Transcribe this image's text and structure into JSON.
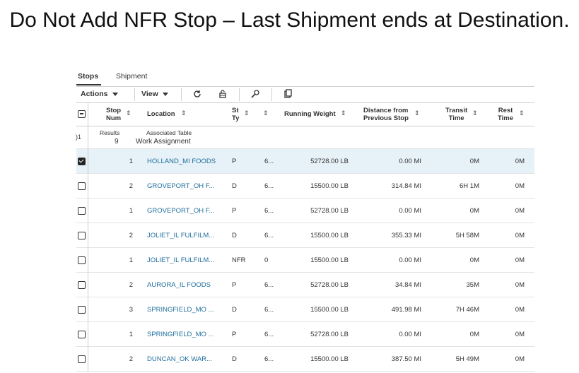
{
  "caption": "Do Not Add NFR Stop – Last Shipment ends at Destination.",
  "tabs": [
    {
      "label": "Stops"
    },
    {
      "label": "Shipment"
    }
  ],
  "toolbar": {
    "actions_label": "Actions",
    "view_label": "View",
    "icons": [
      "refresh-icon",
      "unlock-icon",
      "wrench-icon",
      "export-icon"
    ]
  },
  "columns": {
    "stop_num": [
      "Stop",
      "Num"
    ],
    "location": "Location",
    "stop_type": [
      "St",
      "Ty"
    ],
    "running_weight": "Running Weight",
    "distance": [
      "Distance from",
      "Previous Stop"
    ],
    "transit": [
      "Transit",
      "Time"
    ],
    "rest": [
      "Rest",
      "Time"
    ]
  },
  "results_row": {
    "left_fragment": ")1",
    "results_label": "Results",
    "results_count": "9",
    "assoc_label": "Associated Table",
    "assoc_value": "Work Assignment"
  },
  "rows": [
    {
      "checked": true,
      "stop": "1",
      "location": "HOLLAND_MI FOODS",
      "type": "P",
      "extra": "6...",
      "weight": "52728.00 LB",
      "distance": "0.00 MI",
      "transit": "0M",
      "rest": "0M"
    },
    {
      "checked": false,
      "stop": "2",
      "location": "GROVEPORT_OH F...",
      "type": "D",
      "extra": "6...",
      "weight": "15500.00 LB",
      "distance": "314.84 MI",
      "transit": "6H 1M",
      "rest": "0M"
    },
    {
      "checked": false,
      "stop": "1",
      "location": "GROVEPORT_OH F...",
      "type": "P",
      "extra": "6...",
      "weight": "52728.00 LB",
      "distance": "0.00 MI",
      "transit": "0M",
      "rest": "0M"
    },
    {
      "checked": false,
      "stop": "2",
      "location": "JOLIET_IL FULFILM...",
      "type": "D",
      "extra": "6...",
      "weight": "15500.00 LB",
      "distance": "355.33 MI",
      "transit": "5H 58M",
      "rest": "0M"
    },
    {
      "checked": false,
      "stop": "1",
      "location": "JOLIET_IL FULFILM...",
      "type": "NFR",
      "extra": "0",
      "weight": "15500.00 LB",
      "distance": "0.00 MI",
      "transit": "0M",
      "rest": "0M"
    },
    {
      "checked": false,
      "stop": "2",
      "location": "AURORA_IL FOODS",
      "type": "P",
      "extra": "6...",
      "weight": "52728.00 LB",
      "distance": "34.84 MI",
      "transit": "35M",
      "rest": "0M"
    },
    {
      "checked": false,
      "stop": "3",
      "location": "SPRINGFIELD_MO ...",
      "type": "D",
      "extra": "6...",
      "weight": "15500.00 LB",
      "distance": "491.98 MI",
      "transit": "7H 46M",
      "rest": "0M"
    },
    {
      "checked": false,
      "stop": "1",
      "location": "SPRINGFIELD_MO ...",
      "type": "P",
      "extra": "6...",
      "weight": "52728.00 LB",
      "distance": "0.00 MI",
      "transit": "0M",
      "rest": "0M"
    },
    {
      "checked": false,
      "stop": "2",
      "location": "DUNCAN_OK WAR...",
      "type": "D",
      "extra": "6...",
      "weight": "15500.00 LB",
      "distance": "387.50 MI",
      "transit": "5H 49M",
      "rest": "0M"
    }
  ]
}
